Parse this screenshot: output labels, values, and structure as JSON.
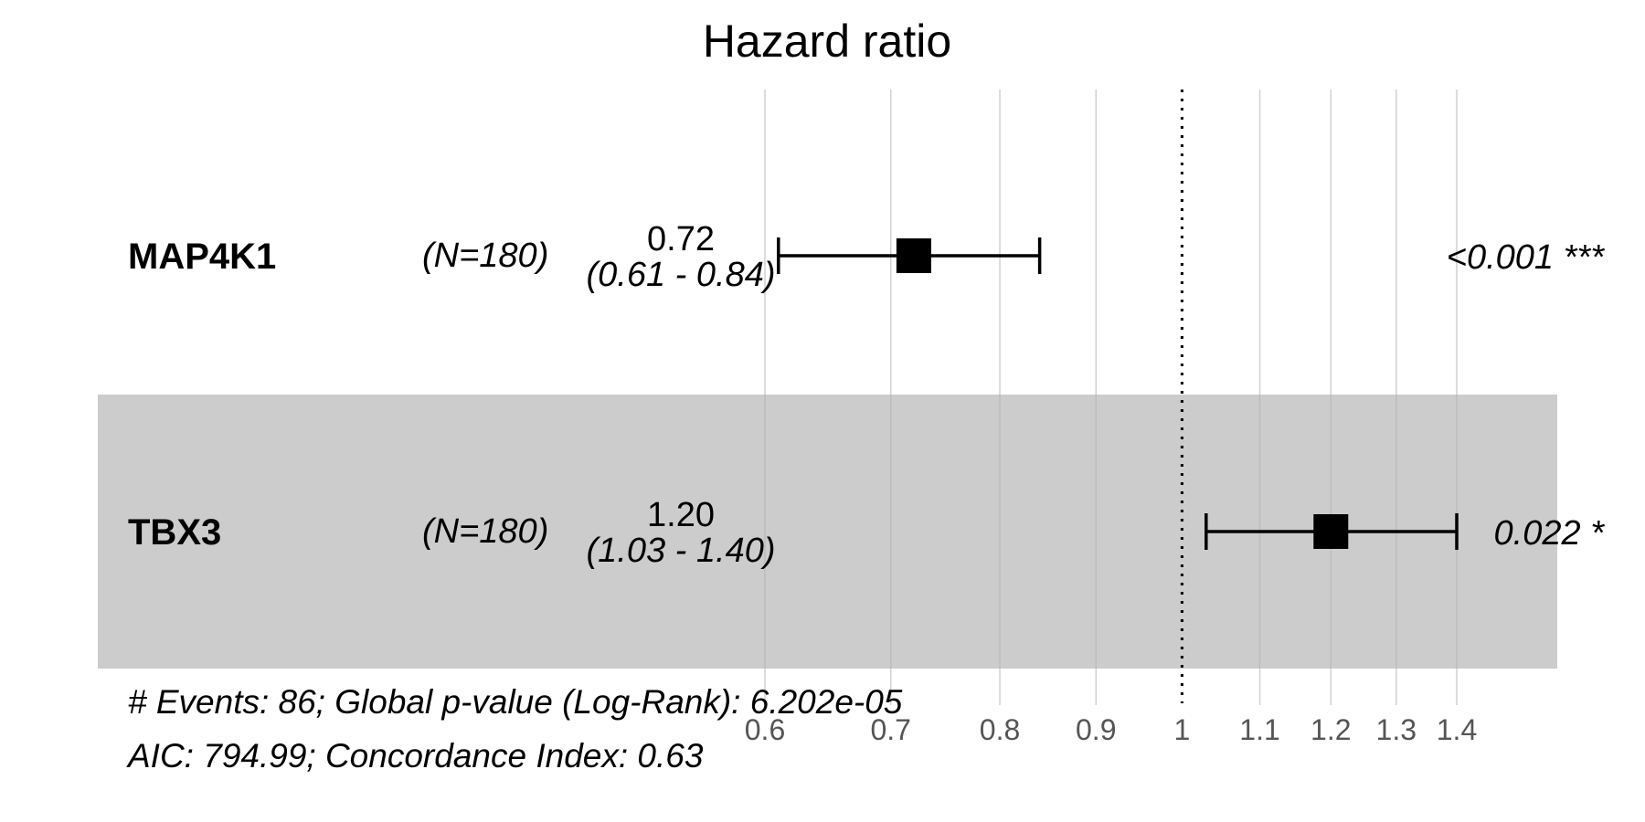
{
  "chart_data": {
    "type": "forest",
    "title": "Hazard ratio",
    "x_scale": "log",
    "xlim": [
      0.6,
      1.4
    ],
    "reference_line": 1,
    "ticks": [
      0.6,
      0.7,
      0.8,
      0.9,
      1,
      1.1,
      1.2,
      1.3,
      1.4
    ],
    "tick_labels": [
      "0.6",
      "0.7",
      "0.8",
      "0.9",
      "1",
      "1.1",
      "1.2",
      "1.3",
      "1.4"
    ],
    "rows": [
      {
        "variable": "MAP4K1",
        "n_label": "(N=180)",
        "hr": 0.72,
        "lower": 0.61,
        "upper": 0.84,
        "hr_label": "0.72",
        "ci_label": "(0.61 - 0.84)",
        "p_label": "<0.001 ***",
        "shaded": false
      },
      {
        "variable": "TBX3",
        "n_label": "(N=180)",
        "hr": 1.2,
        "lower": 1.03,
        "upper": 1.4,
        "hr_label": "1.20",
        "ci_label": "(1.03 - 1.40)",
        "p_label": "0.022 *",
        "shaded": true
      }
    ],
    "footer": [
      "# Events: 86; Global p-value (Log-Rank): 6.202e-05",
      "AIC: 794.99; Concordance Index: 0.63"
    ]
  },
  "colors": {
    "stripe": "#cccccc",
    "gridline": "#b3b3b3",
    "marker": "#000000",
    "tick_text": "#555555"
  }
}
